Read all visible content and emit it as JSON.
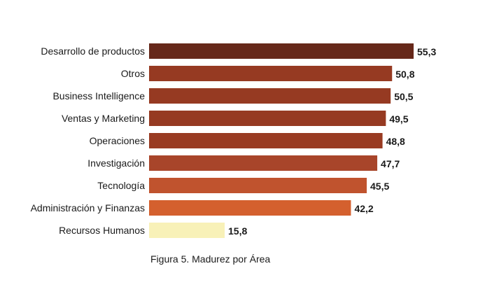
{
  "chart_data": {
    "type": "bar",
    "orientation": "horizontal",
    "title": "",
    "xlabel": "",
    "ylabel": "",
    "xlim": [
      0,
      55.3
    ],
    "grid": false,
    "legend": "none",
    "categories": [
      "Desarrollo de productos",
      "Otros",
      "Business Intelligence",
      "Ventas y Marketing",
      "Operaciones",
      "Investigación",
      "Tecnología",
      "Administración y Finanzas",
      "Recursos Humanos"
    ],
    "values": [
      55.3,
      50.8,
      50.5,
      49.5,
      48.8,
      47.7,
      45.5,
      42.2,
      15.8
    ],
    "value_labels": [
      "55,3",
      "50,8",
      "50,5",
      "49,5",
      "48,8",
      "47,7",
      "45,5",
      "42,2",
      "15,8"
    ],
    "bar_colors": [
      "#66281a",
      "#963a22",
      "#963a22",
      "#963a22",
      "#993b22",
      "#a8452a",
      "#c0532e",
      "#d4602e",
      "#f8f1b8"
    ]
  },
  "caption": "Figura 5. Madurez por Área"
}
